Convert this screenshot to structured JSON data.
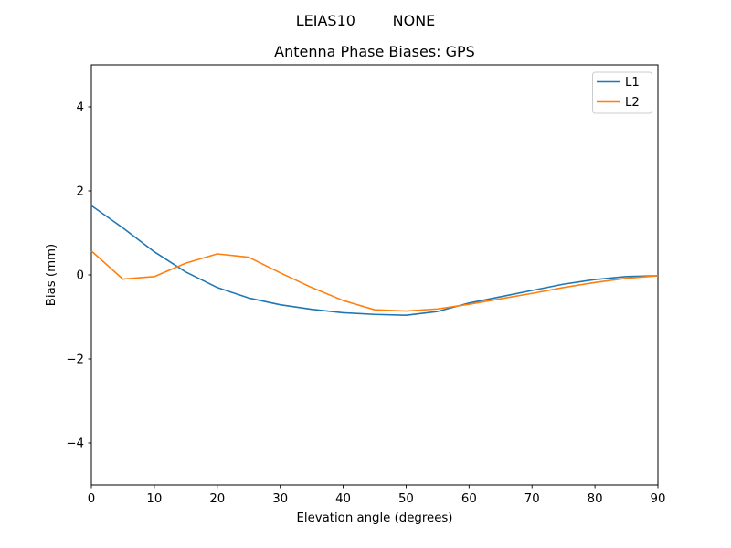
{
  "figure": {
    "suptitle": "LEIAS10        NONE",
    "station_label": "LEIAS10",
    "radome_label": "NONE"
  },
  "chart_data": {
    "type": "line",
    "title": "Antenna Phase Biases: GPS",
    "xlabel": "Elevation angle (degrees)",
    "ylabel": "Bias (mm)",
    "xlim": [
      0,
      90
    ],
    "ylim": [
      -5,
      5
    ],
    "xticks": [
      0,
      10,
      20,
      30,
      40,
      50,
      60,
      70,
      80,
      90
    ],
    "yticks": [
      -4,
      -2,
      0,
      2,
      4
    ],
    "grid": false,
    "legend_position": "upper right",
    "x": [
      0,
      5,
      10,
      15,
      20,
      25,
      30,
      35,
      40,
      45,
      50,
      55,
      60,
      65,
      70,
      75,
      80,
      85,
      90
    ],
    "series": [
      {
        "name": "L1",
        "color": "#1f77b4",
        "values": [
          1.65,
          1.12,
          0.55,
          0.07,
          -0.3,
          -0.55,
          -0.71,
          -0.82,
          -0.9,
          -0.94,
          -0.96,
          -0.87,
          -0.67,
          -0.52,
          -0.37,
          -0.22,
          -0.11,
          -0.04,
          -0.02
        ]
      },
      {
        "name": "L2",
        "color": "#ff7f0e",
        "values": [
          0.57,
          -0.1,
          -0.04,
          0.28,
          0.5,
          0.42,
          0.05,
          -0.3,
          -0.61,
          -0.83,
          -0.86,
          -0.81,
          -0.7,
          -0.57,
          -0.44,
          -0.3,
          -0.18,
          -0.08,
          -0.02
        ]
      }
    ]
  }
}
